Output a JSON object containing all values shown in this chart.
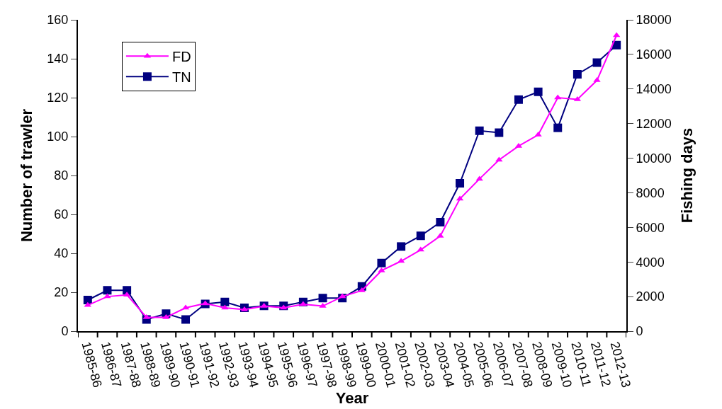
{
  "chart_data": {
    "type": "line",
    "xlabel": "Year",
    "ylabel": "Number of trawler",
    "y2label": "Fishing days",
    "categories": [
      "1985-86",
      "1986-87",
      "1987-88",
      "1988-89",
      "1989-90",
      "1990-91",
      "1991-92",
      "1992-93",
      "1993-94",
      "1994-95",
      "1995-96",
      "1996-97",
      "1997-98",
      "1998-99",
      "1999-00",
      "2000-01",
      "2001-02",
      "2002-03",
      "2003-04",
      "2004-05",
      "2005-06",
      "2006-07",
      "2007-08",
      "2008-09",
      "2009-10",
      "2010-11",
      "2011-12",
      "2012-13"
    ],
    "series": [
      {
        "name": "FD",
        "color": "#ff00ff",
        "marker": "triangle",
        "axis": "y2",
        "values": [
          1500,
          2000,
          2100,
          800,
          800,
          1350,
          1600,
          1350,
          1250,
          1450,
          1350,
          1550,
          1450,
          2000,
          2350,
          3500,
          4050,
          4700,
          5500,
          7650,
          8800,
          9900,
          10700,
          11350,
          13500,
          13400,
          14500,
          17100
        ]
      },
      {
        "name": "TN",
        "color": "#000080",
        "marker": "square",
        "values": [
          16,
          21,
          21,
          6,
          9,
          6,
          14,
          15,
          12,
          13,
          13,
          15,
          17,
          17,
          23,
          35,
          43.5,
          49,
          56,
          76,
          103,
          102,
          119,
          123,
          104.5,
          132,
          138,
          147
        ]
      }
    ],
    "ylim": [
      0,
      160
    ],
    "yticks": [
      0,
      20,
      40,
      60,
      80,
      100,
      120,
      140,
      160
    ],
    "y2lim": [
      0,
      18000
    ],
    "y2ticks": [
      0,
      2000,
      4000,
      6000,
      8000,
      10000,
      12000,
      14000,
      16000,
      18000
    ],
    "legend": "top left"
  }
}
